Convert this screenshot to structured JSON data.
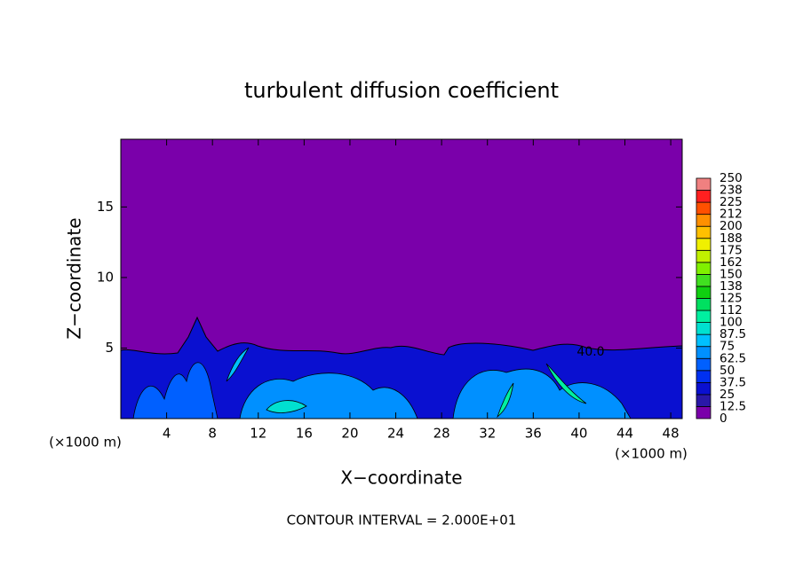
{
  "chart_data": {
    "type": "contour",
    "title": "turbulent diffusion coefficient",
    "xlabel": "X−coordinate",
    "ylabel": "Z−coordinate",
    "x_unit_labels": [
      "(×1000 m)",
      "(×1000 m)"
    ],
    "xlim": [
      0,
      49
    ],
    "ylim": [
      0,
      19.8
    ],
    "xticks": [
      4,
      8,
      12,
      16,
      20,
      24,
      28,
      32,
      36,
      40,
      44,
      48
    ],
    "yticks": [
      5,
      10,
      15
    ],
    "contour_label": "40.0",
    "footnote": "CONTOUR INTERVAL = 2.000E+01",
    "colorbar": {
      "levels": [
        0,
        12.5,
        25,
        37.5,
        50,
        62.5,
        75,
        87.5,
        100,
        112,
        125,
        138,
        150,
        162,
        175,
        188,
        200,
        212,
        225,
        238,
        250
      ],
      "colors": [
        "#7a00aa",
        "#2a18a8",
        "#0a10d0",
        "#0030f0",
        "#0060ff",
        "#0090ff",
        "#00c0ff",
        "#00e0d0",
        "#00f0a0",
        "#00e060",
        "#10d010",
        "#40e020",
        "#80f000",
        "#c0f000",
        "#f0f000",
        "#ffc000",
        "#ff9000",
        "#ff5000",
        "#ff2020",
        "#f08080"
      ]
    }
  }
}
